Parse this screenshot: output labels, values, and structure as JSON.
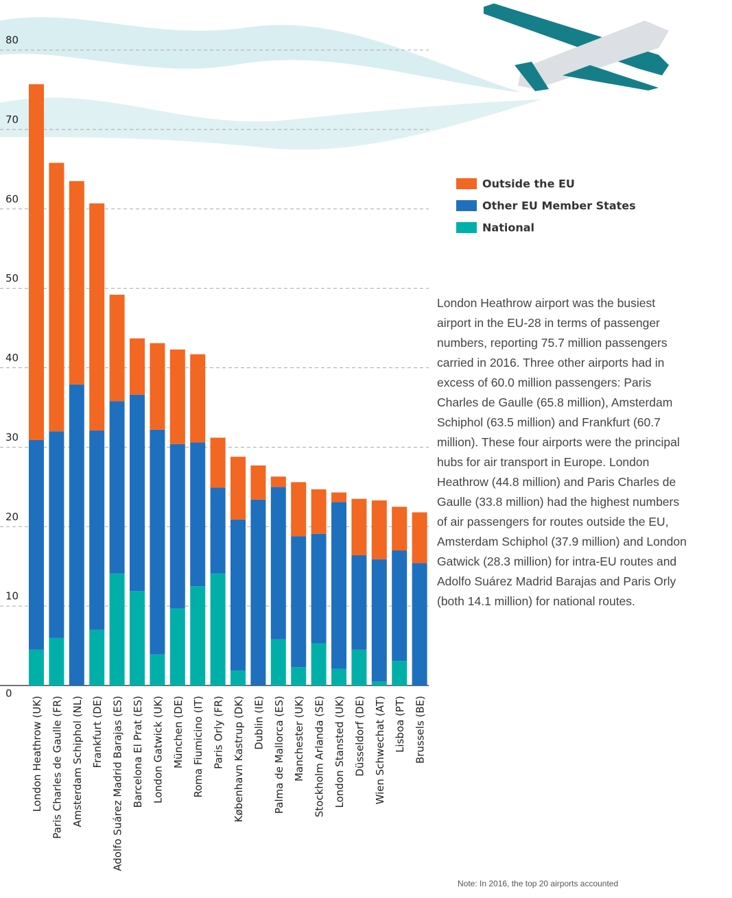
{
  "chart_data": {
    "type": "stacked_bar",
    "categories": [
      "London Heathrow (UK)",
      "Paris Charles de Gaulle (FR)",
      "Amsterdam Schiphol (NL)",
      "Frankfurt (DE)",
      "Adolfo Suárez Madrid Barajas (ES)",
      "Barcelona El Prat (ES)",
      "London Gatwick (UK)",
      "München (DE)",
      "Roma Fiumicino (IT)",
      "Paris Orly (FR)",
      "København Kastrup (DK)",
      "Dublin (IE)",
      "Palma de Mallorca (ES)",
      "Manchester (UK)",
      "Stockholm Arlanda (SE)",
      "London Stansted (UK)",
      "Düsseldorf (DE)",
      "Wien Schwechat (AT)",
      "Lisboa (PT)",
      "Brussels (BE)"
    ],
    "series": [
      {
        "name": "National",
        "color": "#00b0a8",
        "values": [
          4.5,
          6.0,
          0,
          7.0,
          14.1,
          11.9,
          3.9,
          9.7,
          12.5,
          14.1,
          1.9,
          0,
          5.8,
          2.3,
          5.3,
          2.1,
          4.5,
          0.5,
          3.1,
          0
        ]
      },
      {
        "name": "Other EU Member States",
        "color": "#1f6fbf",
        "values": [
          26.4,
          26.0,
          37.9,
          25.1,
          21.7,
          24.7,
          28.3,
          20.7,
          18.1,
          10.8,
          19.0,
          23.4,
          19.2,
          16.5,
          13.8,
          21.0,
          11.9,
          15.4,
          13.9,
          15.4
        ]
      },
      {
        "name": "Outside the EU",
        "color": "#f26722",
        "values": [
          44.8,
          33.8,
          25.6,
          28.6,
          13.4,
          7.1,
          10.9,
          11.9,
          11.1,
          6.3,
          7.9,
          4.3,
          1.3,
          6.8,
          5.6,
          1.2,
          7.1,
          7.4,
          5.5,
          6.4
        ]
      }
    ],
    "ylim": [
      0,
      80
    ],
    "yticks": [
      0,
      10,
      20,
      30,
      40,
      50,
      60,
      70,
      80
    ],
    "grid": true
  },
  "description": "London Heathrow airport was the busiest airport in the EU-28 in terms of passenger numbers, reporting 75.7 million passengers carried in 2016. Three other airports had in excess of 60.0 million passengers: Paris Charles de Gaulle (65.8 million), Amsterdam Schiphol (63.5 million) and Frankfurt (60.7 million). These four airports were the principal hubs for air transport in Europe. London Heathrow (44.8 million) and Paris Charles de Gaulle (33.8 million) had the highest numbers of air passengers for routes outside the EU, Amsterdam Schiphol (37.9 million) and London Gatwick (28.3 million) for intra-EU routes and Adolfo Suárez Madrid Barajas and Paris Orly (both 14.1 million) for national routes.",
  "note": "Note: In 2016, the top 20 airports accounted"
}
